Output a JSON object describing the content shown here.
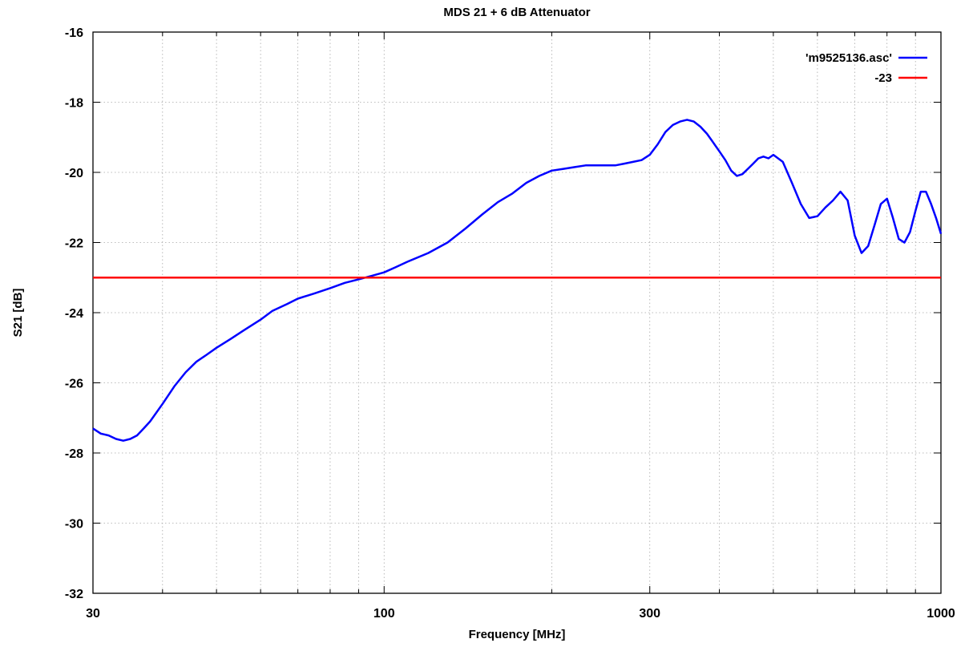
{
  "chart_data": {
    "type": "line",
    "title": "MDS 21 + 6 dB Attenuator",
    "xlabel": "Frequency [MHz]",
    "ylabel": "S21 [dB]",
    "xscale": "log",
    "xlim": [
      30,
      1000
    ],
    "ylim": [
      -32,
      -16
    ],
    "x_tick_labels": [
      "30",
      "100",
      "300",
      "1000"
    ],
    "x_ticks": [
      30,
      100,
      300,
      1000
    ],
    "x_grid": [
      30,
      40,
      50,
      60,
      70,
      80,
      90,
      100,
      200,
      300,
      400,
      500,
      600,
      700,
      800,
      900,
      1000
    ],
    "y_ticks": [
      -32,
      -30,
      -28,
      -26,
      -24,
      -22,
      -20,
      -18,
      -16
    ],
    "y_tick_labels": [
      "-32",
      "-30",
      "-28",
      "-26",
      "-24",
      "-22",
      "-20",
      "-18",
      "-16"
    ],
    "grid": true,
    "legend_position": "top-right",
    "series": [
      {
        "name": "'m9525136.asc'",
        "color": "#0000ff",
        "x": [
          30,
          31,
          32,
          33,
          34,
          35,
          36,
          37,
          38,
          40,
          42,
          44,
          46,
          48,
          50,
          53,
          56,
          60,
          63,
          67,
          70,
          75,
          80,
          85,
          90,
          95,
          100,
          105,
          110,
          120,
          130,
          140,
          150,
          160,
          170,
          180,
          190,
          200,
          210,
          220,
          230,
          240,
          250,
          260,
          270,
          280,
          290,
          300,
          310,
          320,
          330,
          340,
          350,
          360,
          370,
          380,
          390,
          400,
          410,
          420,
          430,
          440,
          450,
          460,
          470,
          480,
          490,
          500,
          520,
          540,
          560,
          580,
          600,
          620,
          640,
          660,
          680,
          700,
          720,
          740,
          760,
          780,
          800,
          820,
          840,
          860,
          880,
          900,
          920,
          940,
          960,
          980,
          1000
        ],
        "y": [
          -27.3,
          -27.45,
          -27.5,
          -27.6,
          -27.65,
          -27.6,
          -27.5,
          -27.3,
          -27.1,
          -26.6,
          -26.1,
          -25.7,
          -25.4,
          -25.2,
          -25.0,
          -24.75,
          -24.5,
          -24.2,
          -23.95,
          -23.75,
          -23.6,
          -23.45,
          -23.3,
          -23.15,
          -23.05,
          -22.95,
          -22.85,
          -22.7,
          -22.55,
          -22.3,
          -22.0,
          -21.6,
          -21.2,
          -20.85,
          -20.6,
          -20.3,
          -20.1,
          -19.95,
          -19.9,
          -19.85,
          -19.8,
          -19.8,
          -19.8,
          -19.8,
          -19.75,
          -19.7,
          -19.65,
          -19.5,
          -19.2,
          -18.85,
          -18.65,
          -18.55,
          -18.5,
          -18.55,
          -18.7,
          -18.9,
          -19.15,
          -19.4,
          -19.65,
          -19.95,
          -20.1,
          -20.05,
          -19.9,
          -19.75,
          -19.6,
          -19.55,
          -19.6,
          -19.5,
          -19.7,
          -20.3,
          -20.9,
          -21.3,
          -21.25,
          -21.0,
          -20.8,
          -20.55,
          -20.8,
          -21.8,
          -22.3,
          -22.1,
          -21.5,
          -20.9,
          -20.75,
          -21.3,
          -21.9,
          -22.0,
          -21.7,
          -21.1,
          -20.55,
          -20.55,
          -20.9,
          -21.3,
          -21.75
        ]
      },
      {
        "name": "-23",
        "color": "#ff0000",
        "x": [
          30,
          1000
        ],
        "y": [
          -23,
          -23
        ]
      }
    ]
  }
}
